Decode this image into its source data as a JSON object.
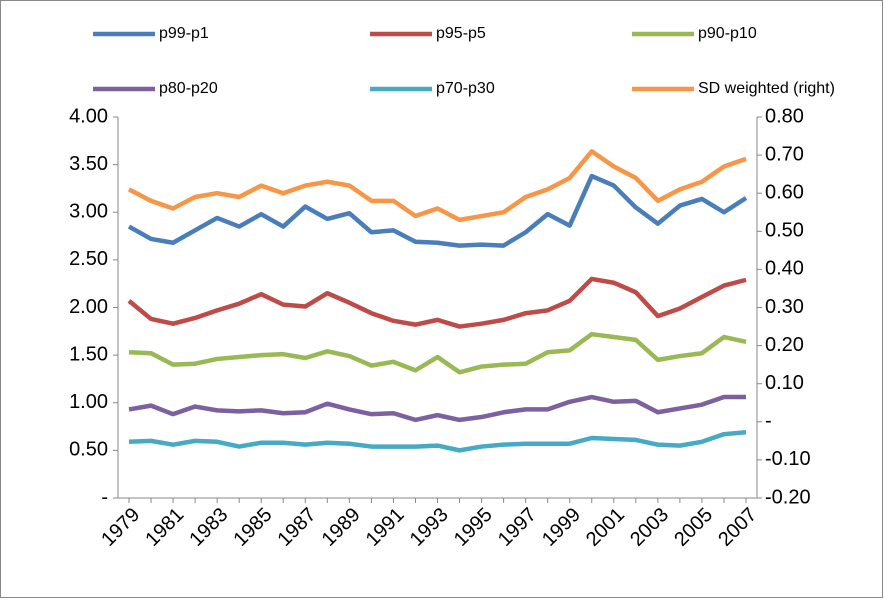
{
  "chart_data": {
    "type": "line",
    "categories": [
      "1979",
      null,
      "1981",
      null,
      "1983",
      null,
      "1985",
      null,
      "1987",
      null,
      "1989",
      null,
      "1991",
      null,
      "1993",
      null,
      "1995",
      null,
      "1997",
      null,
      "1999",
      null,
      "2001",
      null,
      "2003",
      null,
      "2005",
      null,
      "2007"
    ],
    "series": [
      {
        "name": "p99-p1",
        "color": "#4a7ebb",
        "values": [
          2.85,
          2.72,
          2.68,
          2.81,
          2.94,
          2.85,
          2.98,
          2.85,
          3.06,
          2.93,
          2.99,
          2.79,
          2.81,
          2.69,
          2.68,
          2.65,
          2.66,
          2.65,
          2.79,
          2.98,
          2.86,
          3.38,
          3.28,
          3.05,
          2.88,
          3.07,
          3.14,
          3.0,
          3.15
        ]
      },
      {
        "name": "p95-p5",
        "color": "#be4b48",
        "values": [
          2.07,
          1.88,
          1.83,
          1.89,
          1.97,
          2.04,
          2.14,
          2.03,
          2.01,
          2.15,
          2.05,
          1.94,
          1.86,
          1.82,
          1.87,
          1.8,
          1.83,
          1.87,
          1.94,
          1.97,
          2.07,
          2.3,
          2.26,
          2.16,
          1.91,
          1.99,
          2.11,
          2.23,
          2.29
        ]
      },
      {
        "name": "p90-p10",
        "color": "#98b954",
        "values": [
          1.53,
          1.52,
          1.4,
          1.41,
          1.46,
          1.48,
          1.5,
          1.51,
          1.47,
          1.54,
          1.49,
          1.39,
          1.43,
          1.34,
          1.48,
          1.32,
          1.38,
          1.4,
          1.41,
          1.53,
          1.55,
          1.72,
          1.69,
          1.66,
          1.45,
          1.49,
          1.52,
          1.69,
          1.64
        ]
      },
      {
        "name": "p80-p20",
        "color": "#7d60a0",
        "values": [
          0.93,
          0.97,
          0.88,
          0.96,
          0.92,
          0.91,
          0.92,
          0.89,
          0.9,
          0.99,
          0.93,
          0.88,
          0.89,
          0.82,
          0.87,
          0.82,
          0.85,
          0.9,
          0.93,
          0.93,
          1.01,
          1.06,
          1.01,
          1.02,
          0.9,
          0.94,
          0.98,
          1.06,
          1.06
        ]
      },
      {
        "name": "p70-p30",
        "color": "#46aac5",
        "values": [
          0.59,
          0.6,
          0.56,
          0.6,
          0.59,
          0.54,
          0.58,
          0.58,
          0.56,
          0.58,
          0.57,
          0.54,
          0.54,
          0.54,
          0.55,
          0.5,
          0.54,
          0.56,
          0.57,
          0.57,
          0.57,
          0.63,
          0.62,
          0.61,
          0.56,
          0.55,
          0.59,
          0.67,
          0.69
        ]
      },
      {
        "name": "SD weighted (right)",
        "color": "#f79646",
        "axis": "y2",
        "values": [
          0.61,
          0.58,
          0.56,
          0.59,
          0.6,
          0.59,
          0.62,
          0.6,
          0.62,
          0.63,
          0.62,
          0.58,
          0.58,
          0.54,
          0.56,
          0.53,
          0.54,
          0.55,
          0.59,
          0.61,
          0.64,
          0.71,
          0.67,
          0.64,
          0.58,
          0.61,
          0.63,
          0.67,
          0.69
        ]
      }
    ],
    "ylim": [
      0,
      4
    ],
    "yticks": [
      {
        "value": 0,
        "label": "-"
      },
      {
        "value": 0.5,
        "label": "0.50"
      },
      {
        "value": 1,
        "label": "1.00"
      },
      {
        "value": 1.5,
        "label": "1.50"
      },
      {
        "value": 2,
        "label": "2.00"
      },
      {
        "value": 2.5,
        "label": "2.50"
      },
      {
        "value": 3,
        "label": "3.00"
      },
      {
        "value": 3.5,
        "label": "3.50"
      },
      {
        "value": 4,
        "label": "4.00"
      }
    ],
    "y2lim": [
      -0.2,
      0.8
    ],
    "y2ticks": [
      {
        "value": -0.2,
        "label": "-0.20"
      },
      {
        "value": -0.1,
        "label": "-0.10"
      },
      {
        "value": 0,
        "label": "-"
      },
      {
        "value": 0.1,
        "label": "0.10"
      },
      {
        "value": 0.2,
        "label": "0.20"
      },
      {
        "value": 0.3,
        "label": "0.30"
      },
      {
        "value": 0.4,
        "label": "0.40"
      },
      {
        "value": 0.5,
        "label": "0.50"
      },
      {
        "value": 0.6,
        "label": "0.60"
      },
      {
        "value": 0.7,
        "label": "0.70"
      },
      {
        "value": 0.8,
        "label": "0.80"
      }
    ],
    "grid": false,
    "legend": "top"
  }
}
